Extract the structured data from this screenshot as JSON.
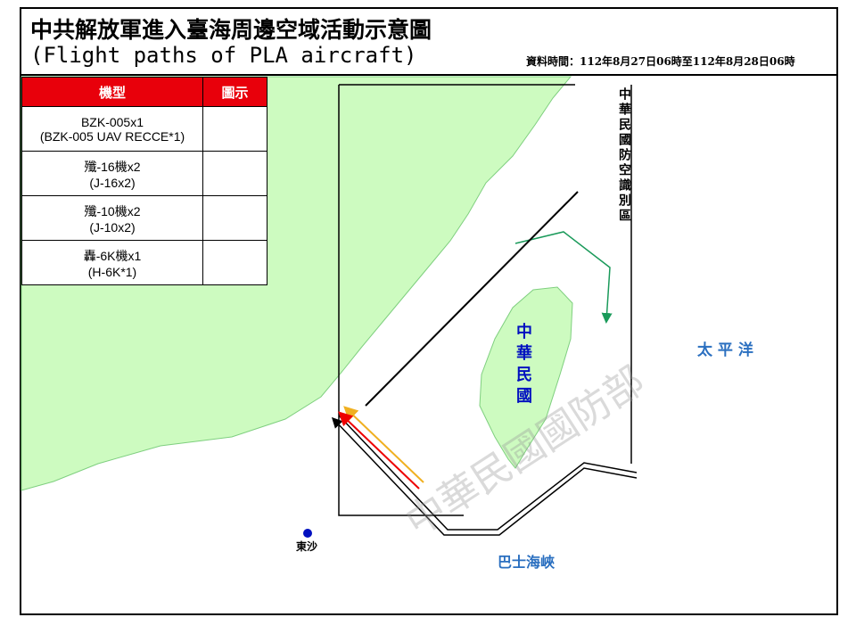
{
  "header": {
    "title": "中共解放軍進入臺海周邊空域活動示意圖",
    "subtitle": "(Flight paths of PLA aircraft)",
    "data_time": "資料時間：112年8月27日06時至112年8月28日06時"
  },
  "legend": {
    "headers": [
      "機型",
      "圖示"
    ],
    "rows": [
      {
        "name": "BZK-005x1",
        "name_en": "(BZK-005 UAV RECCE*1)"
      },
      {
        "name": "殲-16機x2",
        "name_en": "(J-16x2)"
      },
      {
        "name": "殲-10機x2",
        "name_en": "(J-10x2)"
      },
      {
        "name": "轟-6K機x1",
        "name_en": "(H-6K*1)"
      }
    ]
  },
  "labels": {
    "adiz": "中華民國防空識別區",
    "taiwan": "中華民國",
    "pacific": "太 平 洋",
    "bashi": "巴士海峽",
    "dongsha": "東沙",
    "watermark": "中華民國國防部"
  }
}
